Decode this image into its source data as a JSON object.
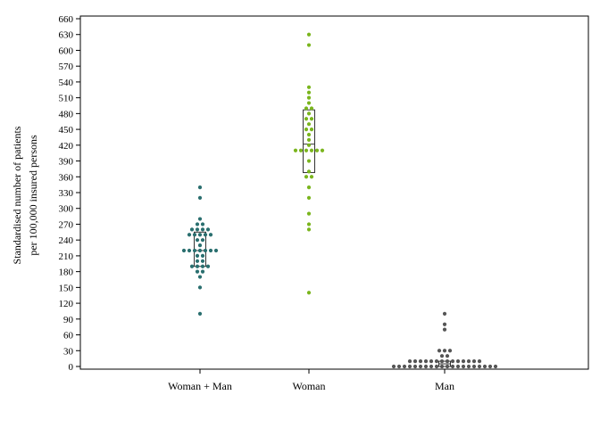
{
  "chart_data": {
    "type": "scatter",
    "subtype": "dot-strip with box",
    "title": "",
    "xlabel": "",
    "ylabel": [
      "Standardised number of patients",
      "per 100,000 insured persons"
    ],
    "ylim": [
      0,
      660
    ],
    "yticks": [
      0,
      30,
      60,
      90,
      120,
      150,
      180,
      210,
      240,
      270,
      300,
      330,
      360,
      390,
      420,
      450,
      480,
      510,
      540,
      570,
      600,
      630,
      660
    ],
    "categories": [
      "Woman + Man",
      "Woman",
      "Man"
    ],
    "grid": false,
    "legend": "none",
    "series": [
      {
        "category": "Woman + Man",
        "color": "#2a6f6f",
        "box": {
          "q1": 190,
          "median": 220,
          "q3": 255
        },
        "values": [
          100,
          150,
          170,
          180,
          180,
          190,
          190,
          190,
          190,
          200,
          200,
          210,
          210,
          220,
          220,
          220,
          220,
          220,
          220,
          220,
          230,
          240,
          240,
          250,
          250,
          250,
          250,
          250,
          260,
          260,
          260,
          260,
          270,
          270,
          280,
          320,
          340
        ]
      },
      {
        "category": "Woman",
        "color": "#7ab51d",
        "box": {
          "q1": 368,
          "median": 422,
          "q3": 487
        },
        "values": [
          140,
          260,
          270,
          290,
          320,
          340,
          360,
          360,
          370,
          390,
          410,
          410,
          410,
          410,
          410,
          410,
          420,
          430,
          440,
          450,
          450,
          460,
          470,
          470,
          480,
          490,
          490,
          500,
          510,
          520,
          530,
          610,
          630
        ]
      },
      {
        "category": "Man",
        "color": "#555555",
        "box": {
          "q1": 0,
          "median": 5,
          "q3": 10
        },
        "values": [
          0,
          0,
          0,
          0,
          0,
          0,
          0,
          0,
          0,
          0,
          0,
          0,
          0,
          0,
          0,
          0,
          0,
          0,
          0,
          0,
          10,
          10,
          10,
          10,
          10,
          10,
          10,
          10,
          10,
          10,
          10,
          10,
          10,
          10,
          20,
          20,
          30,
          30,
          30,
          70,
          80,
          100
        ]
      }
    ]
  }
}
